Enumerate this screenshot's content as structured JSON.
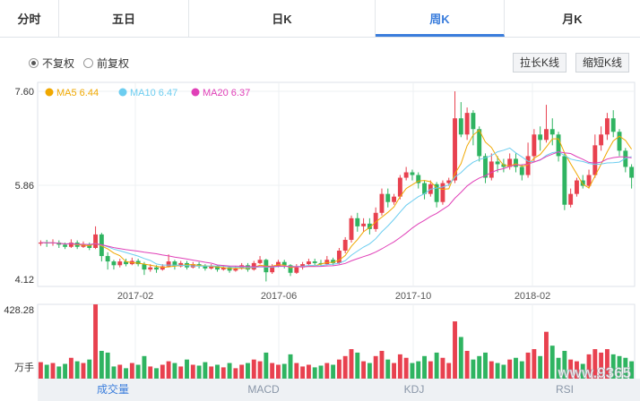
{
  "tabs": [
    {
      "label": "分时",
      "active": false
    },
    {
      "label": "五日",
      "active": false
    },
    {
      "label": "日K",
      "active": false
    },
    {
      "label": "周K",
      "active": true
    },
    {
      "label": "月K",
      "active": false
    }
  ],
  "adjust": {
    "options": [
      {
        "label": "不复权",
        "checked": true
      },
      {
        "label": "前复权",
        "checked": false
      }
    ]
  },
  "buttons": {
    "stretch": "拉长K线",
    "shrink": "缩短K线"
  },
  "legend": [
    {
      "label": "MA5 6.44",
      "color": "#f0a800"
    },
    {
      "label": "MA10 6.47",
      "color": "#6ccdf0"
    },
    {
      "label": "MA20 6.37",
      "color": "#e040b8"
    }
  ],
  "price_axis": {
    "labels": [
      "7.60",
      "5.86",
      "4.12"
    ]
  },
  "date_axis": {
    "labels": [
      "2017-02",
      "2017-06",
      "2017-10",
      "2018-02"
    ]
  },
  "volume_axis": {
    "max_label": "428.28",
    "unit_label": "万手"
  },
  "bottom_tabs": [
    {
      "label": "成交量",
      "active": true
    },
    {
      "label": "MACD",
      "active": false
    },
    {
      "label": "KDJ",
      "active": false
    },
    {
      "label": "RSI",
      "active": false
    }
  ],
  "watermark": "www.9365",
  "colors": {
    "up": "#e8414f",
    "down": "#2fb461",
    "accent": "#3a7ddc"
  },
  "chart_data": {
    "type": "candlestick",
    "ylim": [
      4.12,
      7.6
    ],
    "volume_max": 428.28,
    "candles": [
      [
        4.78,
        4.8,
        4.84,
        4.74,
        95
      ],
      [
        4.8,
        4.79,
        4.85,
        4.72,
        80
      ],
      [
        4.79,
        4.8,
        4.86,
        4.74,
        90
      ],
      [
        4.8,
        4.76,
        4.84,
        4.7,
        70
      ],
      [
        4.76,
        4.72,
        4.8,
        4.68,
        85
      ],
      [
        4.72,
        4.8,
        4.86,
        4.7,
        120
      ],
      [
        4.8,
        4.72,
        4.84,
        4.68,
        100
      ],
      [
        4.72,
        4.76,
        4.82,
        4.7,
        90
      ],
      [
        4.76,
        4.7,
        4.8,
        4.66,
        110
      ],
      [
        4.7,
        4.95,
        5.1,
        4.68,
        428
      ],
      [
        4.95,
        4.55,
        4.98,
        4.45,
        160
      ],
      [
        4.55,
        4.45,
        4.62,
        4.3,
        150
      ],
      [
        4.45,
        4.38,
        4.48,
        4.3,
        70
      ],
      [
        4.38,
        4.45,
        4.5,
        4.34,
        80
      ],
      [
        4.45,
        4.4,
        4.5,
        4.36,
        60
      ],
      [
        4.4,
        4.46,
        4.52,
        4.38,
        90
      ],
      [
        4.46,
        4.4,
        4.5,
        4.36,
        80
      ],
      [
        4.4,
        4.3,
        4.44,
        4.2,
        130
      ],
      [
        4.3,
        4.34,
        4.4,
        4.26,
        70
      ],
      [
        4.34,
        4.3,
        4.38,
        4.24,
        60
      ],
      [
        4.3,
        4.36,
        4.4,
        4.28,
        80
      ],
      [
        4.36,
        4.45,
        4.58,
        4.34,
        100
      ],
      [
        4.45,
        4.36,
        4.48,
        4.3,
        90
      ],
      [
        4.36,
        4.42,
        4.46,
        4.34,
        70
      ],
      [
        4.42,
        4.34,
        4.46,
        4.3,
        110
      ],
      [
        4.34,
        4.4,
        4.44,
        4.32,
        80
      ],
      [
        4.4,
        4.36,
        4.44,
        4.32,
        75
      ],
      [
        4.36,
        4.32,
        4.4,
        4.28,
        95
      ],
      [
        4.32,
        4.36,
        4.4,
        4.3,
        70
      ],
      [
        4.36,
        4.3,
        4.38,
        4.26,
        80
      ],
      [
        4.3,
        4.34,
        4.38,
        4.28,
        65
      ],
      [
        4.34,
        4.28,
        4.36,
        4.24,
        90
      ],
      [
        4.28,
        4.32,
        4.36,
        4.26,
        60
      ],
      [
        4.32,
        4.38,
        4.42,
        4.3,
        80
      ],
      [
        4.38,
        4.3,
        4.42,
        4.26,
        90
      ],
      [
        4.3,
        4.42,
        4.46,
        4.28,
        110
      ],
      [
        4.42,
        4.48,
        4.55,
        4.4,
        100
      ],
      [
        4.48,
        4.25,
        4.5,
        4.08,
        150
      ],
      [
        4.25,
        4.36,
        4.4,
        4.22,
        90
      ],
      [
        4.36,
        4.44,
        4.48,
        4.34,
        80
      ],
      [
        4.44,
        4.38,
        4.48,
        4.32,
        85
      ],
      [
        4.38,
        4.24,
        4.4,
        4.18,
        140
      ],
      [
        4.24,
        4.34,
        4.4,
        4.22,
        90
      ],
      [
        4.34,
        4.4,
        4.44,
        4.3,
        70
      ],
      [
        4.4,
        4.45,
        4.5,
        4.38,
        80
      ],
      [
        4.45,
        4.42,
        4.5,
        4.38,
        65
      ],
      [
        4.42,
        4.4,
        4.48,
        4.36,
        75
      ],
      [
        4.4,
        4.48,
        4.55,
        4.38,
        90
      ],
      [
        4.48,
        4.42,
        4.52,
        4.38,
        80
      ],
      [
        4.42,
        4.65,
        4.7,
        4.4,
        110
      ],
      [
        4.65,
        4.85,
        4.9,
        4.6,
        130
      ],
      [
        4.85,
        5.25,
        5.3,
        4.8,
        170
      ],
      [
        5.25,
        5.1,
        5.35,
        5.0,
        150
      ],
      [
        5.1,
        5.15,
        5.25,
        5.0,
        100
      ],
      [
        5.15,
        5.05,
        5.25,
        4.95,
        90
      ],
      [
        5.05,
        5.35,
        5.45,
        5.0,
        130
      ],
      [
        5.35,
        5.7,
        5.8,
        5.3,
        160
      ],
      [
        5.7,
        5.55,
        5.8,
        5.45,
        110
      ],
      [
        5.55,
        5.65,
        5.7,
        5.5,
        90
      ],
      [
        5.65,
        6.0,
        6.05,
        5.6,
        140
      ],
      [
        6.0,
        6.1,
        6.2,
        5.95,
        120
      ],
      [
        6.1,
        6.05,
        6.15,
        5.95,
        90
      ],
      [
        6.05,
        5.9,
        6.1,
        5.8,
        100
      ],
      [
        5.9,
        5.7,
        5.95,
        5.6,
        130
      ],
      [
        5.7,
        5.88,
        5.95,
        5.65,
        100
      ],
      [
        5.88,
        5.55,
        5.92,
        5.45,
        150
      ],
      [
        5.55,
        5.9,
        5.95,
        5.5,
        120
      ],
      [
        5.9,
        5.95,
        6.0,
        5.85,
        90
      ],
      [
        5.95,
        7.1,
        7.6,
        5.9,
        330
      ],
      [
        7.1,
        6.8,
        7.4,
        6.75,
        240
      ],
      [
        6.8,
        7.2,
        7.3,
        6.7,
        160
      ],
      [
        7.2,
        6.9,
        7.25,
        6.6,
        110
      ],
      [
        6.9,
        6.4,
        6.95,
        6.3,
        130
      ],
      [
        6.4,
        6.0,
        6.45,
        5.9,
        150
      ],
      [
        6.0,
        6.3,
        6.45,
        5.95,
        100
      ],
      [
        6.3,
        6.25,
        6.4,
        6.1,
        90
      ],
      [
        6.25,
        6.2,
        6.35,
        6.1,
        80
      ],
      [
        6.2,
        6.35,
        6.45,
        6.15,
        110
      ],
      [
        6.35,
        6.2,
        6.45,
        6.1,
        120
      ],
      [
        6.2,
        6.05,
        6.25,
        5.95,
        100
      ],
      [
        6.05,
        6.4,
        6.65,
        6.0,
        150
      ],
      [
        6.4,
        6.8,
        6.9,
        6.3,
        170
      ],
      [
        6.8,
        6.7,
        6.95,
        6.5,
        130
      ],
      [
        6.7,
        6.9,
        7.35,
        6.65,
        270
      ],
      [
        6.9,
        6.8,
        7.1,
        6.6,
        190
      ],
      [
        6.8,
        6.4,
        6.85,
        6.3,
        120
      ],
      [
        6.4,
        5.5,
        6.45,
        5.4,
        160
      ],
      [
        5.5,
        5.7,
        5.8,
        5.45,
        110
      ],
      [
        5.7,
        5.95,
        6.0,
        5.65,
        100
      ],
      [
        5.95,
        5.85,
        6.05,
        5.8,
        85
      ],
      [
        5.85,
        6.05,
        6.15,
        5.8,
        140
      ],
      [
        6.05,
        6.6,
        6.8,
        6.0,
        170
      ],
      [
        6.6,
        6.8,
        6.95,
        6.5,
        150
      ],
      [
        6.8,
        7.1,
        7.2,
        6.7,
        170
      ],
      [
        7.1,
        6.85,
        7.25,
        6.75,
        140
      ],
      [
        6.85,
        6.5,
        6.9,
        6.4,
        130
      ],
      [
        6.5,
        6.2,
        6.55,
        6.1,
        120
      ],
      [
        6.2,
        6.0,
        6.25,
        5.8,
        100
      ]
    ]
  }
}
